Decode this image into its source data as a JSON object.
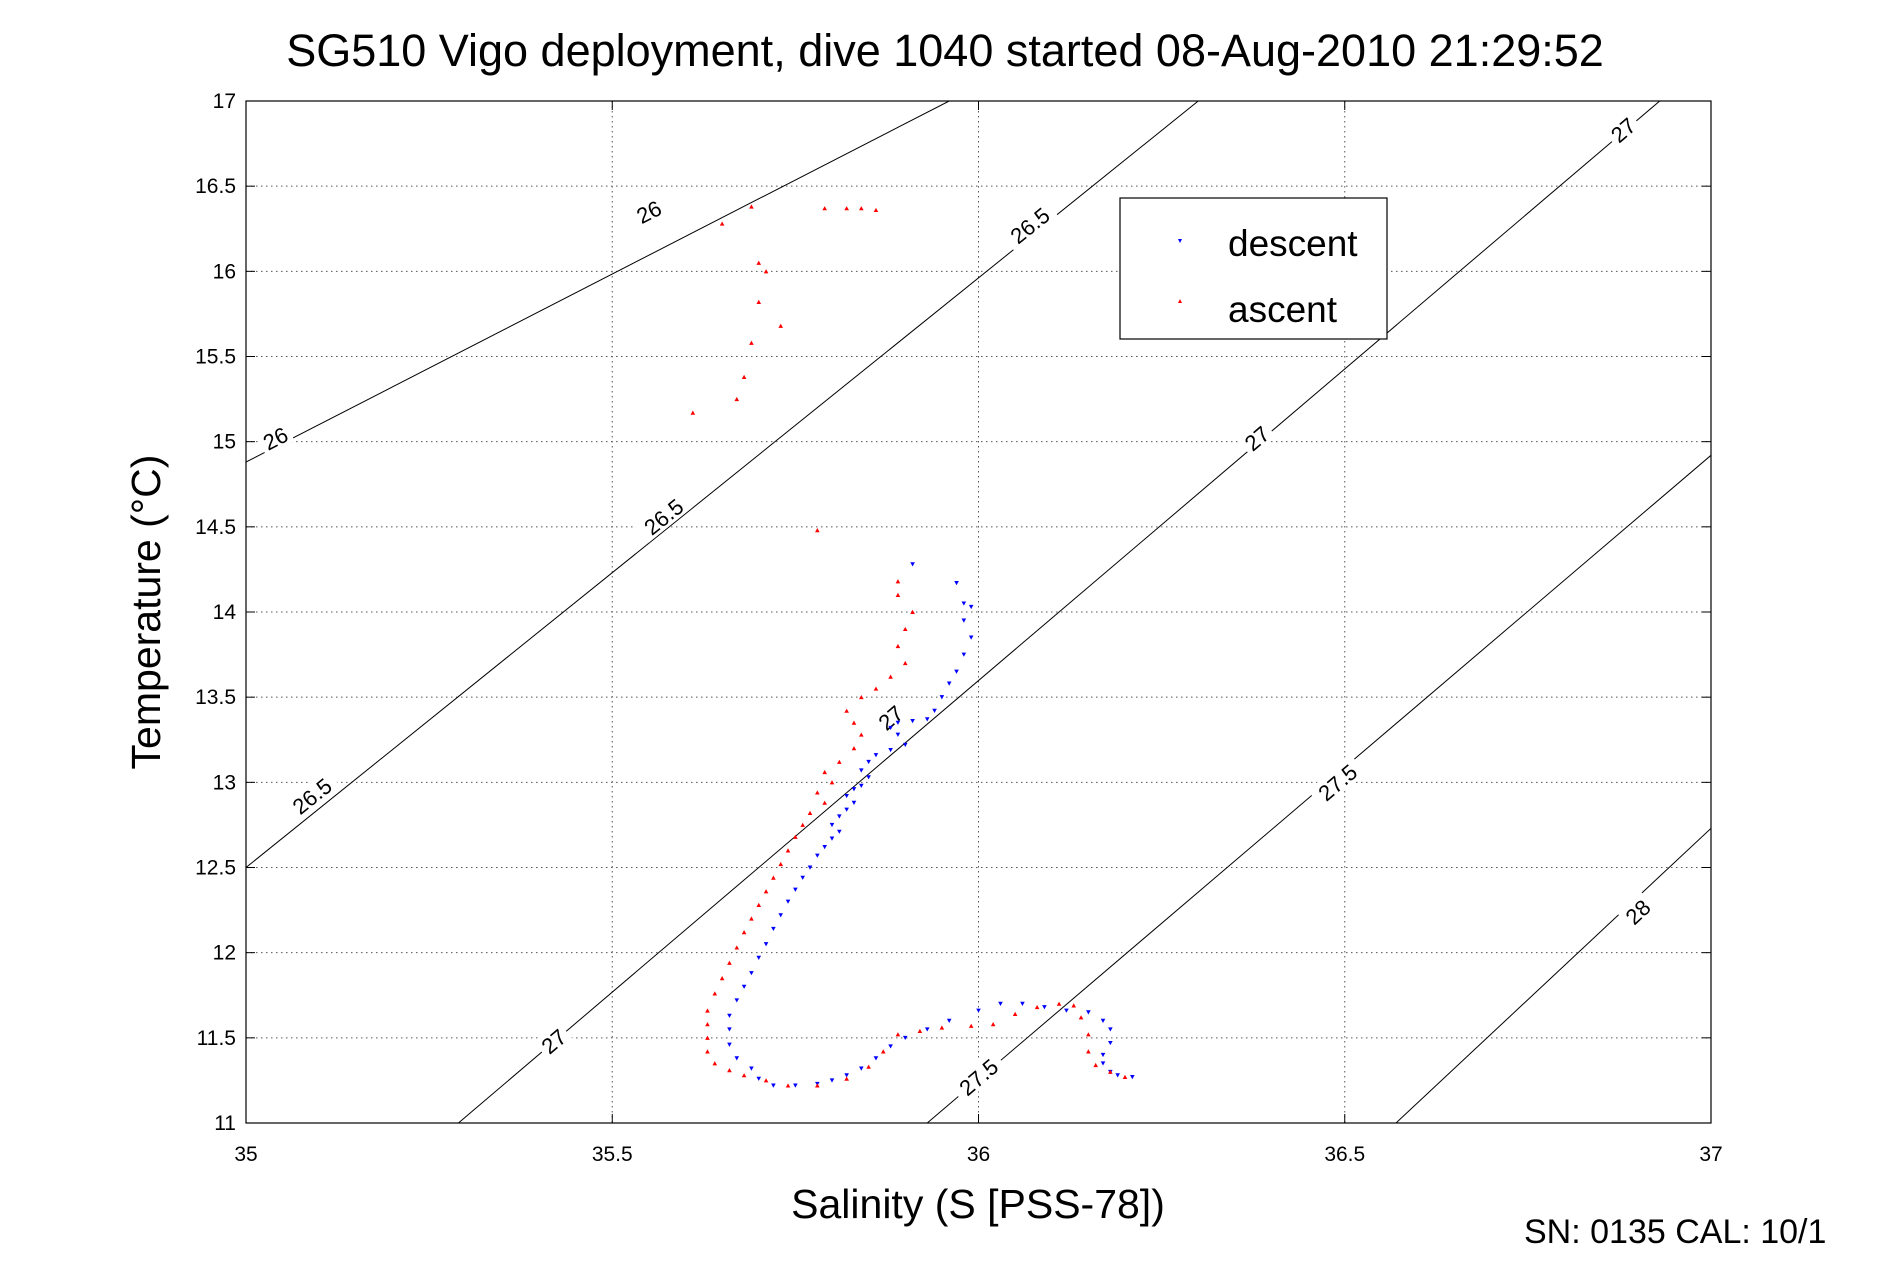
{
  "chart_data": {
    "type": "scatter",
    "title": "SG510 Vigo deployment, dive 1040 started 08-Aug-2010 21:29:52",
    "xlabel": "Salinity (S [PSS-78])",
    "ylabel": "Temperature (°C)",
    "xlim": [
      35,
      37
    ],
    "ylim": [
      11,
      17
    ],
    "grid": true,
    "legend_position": "top-right",
    "x_ticks": [
      "35",
      "35.5",
      "36",
      "36.5",
      "37"
    ],
    "y_ticks": [
      "11",
      "11.5",
      "12",
      "12.5",
      "13",
      "13.5",
      "14",
      "14.5",
      "15",
      "15.5",
      "16",
      "16.5",
      "17"
    ],
    "footer": "SN: 0135  CAL: 10/1",
    "density_contours": [
      {
        "label": "26",
        "points": [
          [
            35,
            14.88
          ],
          [
            35.96,
            17.0
          ]
        ],
        "label_positions": [
          [
            35.55,
            16.35
          ],
          [
            35.04,
            15.02
          ]
        ]
      },
      {
        "label": "26.5",
        "points": [
          [
            35,
            12.5
          ],
          [
            36.3,
            17.0
          ]
        ],
        "label_positions": [
          [
            36.07,
            16.27
          ],
          [
            35.57,
            14.56
          ],
          [
            35.09,
            12.92
          ]
        ]
      },
      {
        "label": "27",
        "points": [
          [
            35.29,
            11.0
          ],
          [
            36.93,
            17.0
          ]
        ],
        "label_positions": [
          [
            36.88,
            16.83
          ],
          [
            36.38,
            15.02
          ],
          [
            35.88,
            13.38
          ],
          [
            35.42,
            11.48
          ]
        ]
      },
      {
        "label": "27.5",
        "points": [
          [
            35.93,
            11.0
          ],
          [
            37,
            14.92
          ]
        ],
        "label_positions": [
          [
            36.49,
            13.0
          ],
          [
            36.0,
            11.27
          ]
        ]
      },
      {
        "label": "28",
        "points": [
          [
            36.57,
            11.0
          ],
          [
            37,
            12.73
          ]
        ],
        "label_positions": [
          [
            36.9,
            12.24
          ]
        ]
      }
    ],
    "series": [
      {
        "name": "descent",
        "color": "#0000ff",
        "marker": "triangle-down",
        "points": [
          [
            35.91,
            14.28
          ],
          [
            35.97,
            14.17
          ],
          [
            35.98,
            14.05
          ],
          [
            35.99,
            14.03
          ],
          [
            35.98,
            13.95
          ],
          [
            35.99,
            13.85
          ],
          [
            35.98,
            13.75
          ],
          [
            35.97,
            13.65
          ],
          [
            35.96,
            13.58
          ],
          [
            35.95,
            13.5
          ],
          [
            35.94,
            13.42
          ],
          [
            35.93,
            13.37
          ],
          [
            35.91,
            13.36
          ],
          [
            35.89,
            13.35
          ],
          [
            35.88,
            13.32
          ],
          [
            35.89,
            13.28
          ],
          [
            35.9,
            13.22
          ],
          [
            35.88,
            13.19
          ],
          [
            35.86,
            13.16
          ],
          [
            35.85,
            13.12
          ],
          [
            35.84,
            13.07
          ],
          [
            35.85,
            13.03
          ],
          [
            35.84,
            12.98
          ],
          [
            35.83,
            12.96
          ],
          [
            35.82,
            12.92
          ],
          [
            35.83,
            12.88
          ],
          [
            35.82,
            12.84
          ],
          [
            35.81,
            12.8
          ],
          [
            35.8,
            12.75
          ],
          [
            35.81,
            12.71
          ],
          [
            35.8,
            12.67
          ],
          [
            35.79,
            12.62
          ],
          [
            35.78,
            12.57
          ],
          [
            35.77,
            12.5
          ],
          [
            35.76,
            12.44
          ],
          [
            35.75,
            12.37
          ],
          [
            35.74,
            12.3
          ],
          [
            35.73,
            12.22
          ],
          [
            35.72,
            12.14
          ],
          [
            35.71,
            12.05
          ],
          [
            35.7,
            11.97
          ],
          [
            35.69,
            11.88
          ],
          [
            35.68,
            11.8
          ],
          [
            35.67,
            11.72
          ],
          [
            35.66,
            11.63
          ],
          [
            35.66,
            11.55
          ],
          [
            35.66,
            11.46
          ],
          [
            35.67,
            11.38
          ],
          [
            35.69,
            11.32
          ],
          [
            35.7,
            11.26
          ],
          [
            35.72,
            11.22
          ],
          [
            35.75,
            11.22
          ],
          [
            35.78,
            11.23
          ],
          [
            35.8,
            11.25
          ],
          [
            35.82,
            11.28
          ],
          [
            35.84,
            11.32
          ],
          [
            35.86,
            11.38
          ],
          [
            35.88,
            11.45
          ],
          [
            35.9,
            11.5
          ],
          [
            35.93,
            11.55
          ],
          [
            35.96,
            11.6
          ],
          [
            36.0,
            11.66
          ],
          [
            36.03,
            11.7
          ],
          [
            36.06,
            11.7
          ],
          [
            36.09,
            11.68
          ],
          [
            36.12,
            11.66
          ],
          [
            36.15,
            11.65
          ],
          [
            36.17,
            11.6
          ],
          [
            36.18,
            11.55
          ],
          [
            36.18,
            11.47
          ],
          [
            36.17,
            11.4
          ],
          [
            36.17,
            11.35
          ],
          [
            36.18,
            11.3
          ],
          [
            36.19,
            11.28
          ],
          [
            36.21,
            11.27
          ]
        ]
      },
      {
        "name": "ascent",
        "color": "#ff0000",
        "marker": "triangle-up",
        "points": [
          [
            35.65,
            16.28
          ],
          [
            35.69,
            16.38
          ],
          [
            35.79,
            16.37
          ],
          [
            35.82,
            16.37
          ],
          [
            35.84,
            16.37
          ],
          [
            35.86,
            16.36
          ],
          [
            35.7,
            16.05
          ],
          [
            35.71,
            16.0
          ],
          [
            35.7,
            15.82
          ],
          [
            35.73,
            15.68
          ],
          [
            35.69,
            15.58
          ],
          [
            35.68,
            15.38
          ],
          [
            35.67,
            15.25
          ],
          [
            35.61,
            15.17
          ],
          [
            35.78,
            14.48
          ],
          [
            35.89,
            14.18
          ],
          [
            35.89,
            14.1
          ],
          [
            35.91,
            14.0
          ],
          [
            35.9,
            13.9
          ],
          [
            35.89,
            13.8
          ],
          [
            35.9,
            13.7
          ],
          [
            35.88,
            13.62
          ],
          [
            35.86,
            13.55
          ],
          [
            35.84,
            13.5
          ],
          [
            35.82,
            13.42
          ],
          [
            35.83,
            13.35
          ],
          [
            35.84,
            13.28
          ],
          [
            35.83,
            13.2
          ],
          [
            35.81,
            13.12
          ],
          [
            35.79,
            13.06
          ],
          [
            35.8,
            13.0
          ],
          [
            35.78,
            12.94
          ],
          [
            35.79,
            12.88
          ],
          [
            35.77,
            12.82
          ],
          [
            35.76,
            12.75
          ],
          [
            35.75,
            12.68
          ],
          [
            35.74,
            12.6
          ],
          [
            35.73,
            12.52
          ],
          [
            35.72,
            12.44
          ],
          [
            35.71,
            12.36
          ],
          [
            35.7,
            12.28
          ],
          [
            35.69,
            12.2
          ],
          [
            35.68,
            12.12
          ],
          [
            35.67,
            12.03
          ],
          [
            35.66,
            11.94
          ],
          [
            35.65,
            11.85
          ],
          [
            35.64,
            11.76
          ],
          [
            35.63,
            11.66
          ],
          [
            35.63,
            11.58
          ],
          [
            35.63,
            11.5
          ],
          [
            35.63,
            11.42
          ],
          [
            35.64,
            11.35
          ],
          [
            35.66,
            11.31
          ],
          [
            35.68,
            11.28
          ],
          [
            35.71,
            11.25
          ],
          [
            35.74,
            11.22
          ],
          [
            35.78,
            11.22
          ],
          [
            35.82,
            11.26
          ],
          [
            35.85,
            11.33
          ],
          [
            35.87,
            11.42
          ],
          [
            35.89,
            11.52
          ],
          [
            35.92,
            11.54
          ],
          [
            35.95,
            11.56
          ],
          [
            35.99,
            11.57
          ],
          [
            36.02,
            11.58
          ],
          [
            36.05,
            11.64
          ],
          [
            36.08,
            11.68
          ],
          [
            36.11,
            11.7
          ],
          [
            36.13,
            11.69
          ],
          [
            36.14,
            11.62
          ],
          [
            36.15,
            11.52
          ],
          [
            36.15,
            11.42
          ],
          [
            36.16,
            11.34
          ],
          [
            36.18,
            11.3
          ],
          [
            36.2,
            11.27
          ]
        ]
      }
    ]
  }
}
